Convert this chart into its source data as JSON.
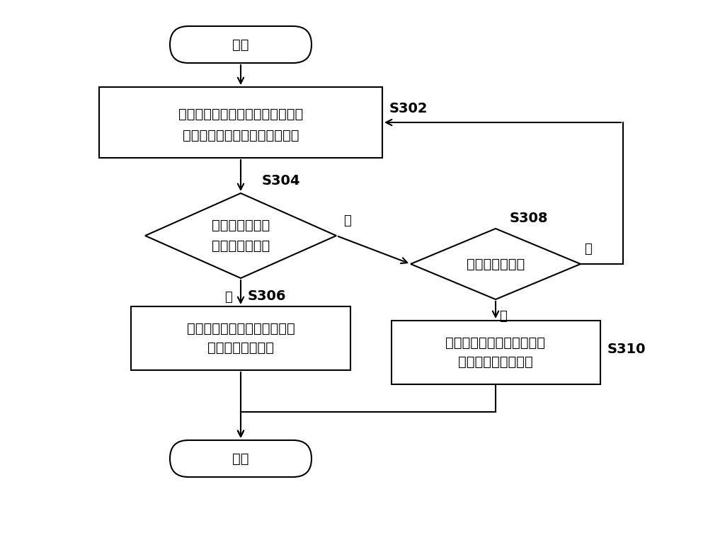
{
  "bg_color": "#ffffff",
  "node_fill": "#ffffff",
  "node_edge": "#000000",
  "start_text": "开始",
  "end_text": "结束",
  "box302_line1": "对进入呼叫流程中主用节点的呼叫",
  "box302_line2": "进行采样分析，得到呼叫成功率",
  "diamond304_line1": "整体呼叫成功率",
  "diamond304_line2": "满足切换条件？",
  "diamond308_text": "个体呼叫失败？",
  "box306_line1": "将主用节点的呼叫全部切换到",
  "box306_line2": "备用节点进行接续",
  "box310_line1": "将呼叫失败的个体呼叫切换",
  "box310_line2": "到备用节点进行接续",
  "label_S302": "S302",
  "label_S304": "S304",
  "label_S306": "S306",
  "label_S308": "S308",
  "label_S310": "S310",
  "yes_label": "是",
  "no_label": "否",
  "lw": 1.5,
  "font_size_zh": 14,
  "font_size_label": 14,
  "font_size_yn": 13
}
